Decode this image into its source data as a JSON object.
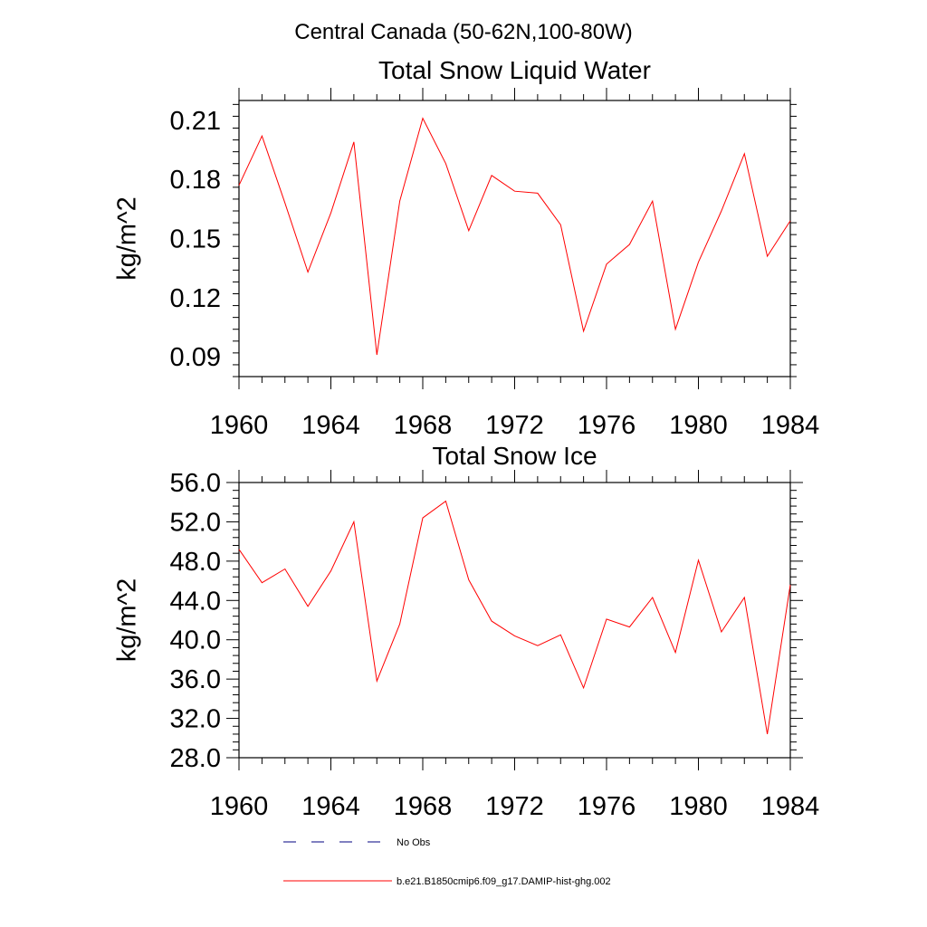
{
  "main_title": "Central Canada (50-62N,100-80W)",
  "colors": {
    "series": "#ff0000",
    "obs": "#000080",
    "axes": "#000000"
  },
  "legend": [
    {
      "label": "No Obs",
      "style": "dashed",
      "color": "#000080"
    },
    {
      "label": "b.e21.B1850cmip6.f09_g17.DAMIP-hist-ghg.002",
      "style": "solid",
      "color": "#ff0000"
    }
  ],
  "chart_data": [
    {
      "type": "line",
      "title": "Total Snow Liquid Water",
      "ylabel": "kg/m^2",
      "xlabel": "",
      "xlim": [
        1960,
        1984
      ],
      "ylim": [
        0.08,
        0.22
      ],
      "xticks": [
        "1960",
        "1964",
        "1968",
        "1972",
        "1976",
        "1980",
        "1984"
      ],
      "yticks": [
        "0.09",
        "0.12",
        "0.15",
        "0.18",
        "0.21"
      ],
      "ytick_values": [
        0.09,
        0.12,
        0.15,
        0.18,
        0.21
      ],
      "x": [
        1960,
        1961,
        1962,
        1963,
        1964,
        1965,
        1966,
        1967,
        1968,
        1969,
        1970,
        1971,
        1972,
        1973,
        1974,
        1975,
        1976,
        1977,
        1978,
        1979,
        1980,
        1981,
        1982,
        1983,
        1984
      ],
      "series": [
        {
          "name": "b.e21.B1850cmip6.f09_g17.DAMIP-hist-ghg.002",
          "values": [
            0.177,
            0.202,
            0.168,
            0.133,
            0.163,
            0.199,
            0.091,
            0.169,
            0.211,
            0.188,
            0.154,
            0.182,
            0.174,
            0.173,
            0.157,
            0.103,
            0.137,
            0.147,
            0.169,
            0.104,
            0.138,
            0.164,
            0.193,
            0.141,
            0.159
          ]
        }
      ]
    },
    {
      "type": "line",
      "title": "Total Snow Ice",
      "ylabel": "kg/m^2",
      "xlabel": "",
      "xlim": [
        1960,
        1984
      ],
      "ylim": [
        28.0,
        56.0
      ],
      "xticks": [
        "1960",
        "1964",
        "1968",
        "1972",
        "1976",
        "1980",
        "1984"
      ],
      "yticks": [
        "28.0",
        "32.0",
        "36.0",
        "40.0",
        "44.0",
        "48.0",
        "52.0",
        "56.0"
      ],
      "ytick_values": [
        28,
        32,
        36,
        40,
        44,
        48,
        52,
        56
      ],
      "x": [
        1960,
        1961,
        1962,
        1963,
        1964,
        1965,
        1966,
        1967,
        1968,
        1969,
        1970,
        1971,
        1972,
        1973,
        1974,
        1975,
        1976,
        1977,
        1978,
        1979,
        1980,
        1981,
        1982,
        1983,
        1984
      ],
      "series": [
        {
          "name": "b.e21.B1850cmip6.f09_g17.DAMIP-hist-ghg.002",
          "values": [
            49.2,
            45.8,
            47.2,
            43.4,
            47.0,
            52.0,
            35.8,
            41.6,
            52.4,
            54.1,
            46.1,
            41.9,
            40.4,
            39.4,
            40.5,
            35.1,
            42.1,
            41.3,
            44.3,
            38.7,
            48.1,
            40.8,
            44.3,
            30.4,
            45.6
          ]
        }
      ]
    }
  ]
}
